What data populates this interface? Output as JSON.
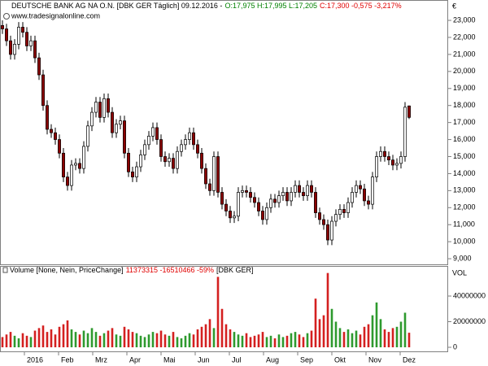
{
  "header": {
    "parts": [
      {
        "text": "DEUTSCHE BANK AG NA O.N. [DBK GER  Täglich] 09.12.2016 -",
        "color": "#000000"
      },
      {
        "text": "O:17,975 H:17,995 L:17,205",
        "color": "#008000"
      },
      {
        "text": "C:17,300 -0,575 -3,217%",
        "color": "#e00000"
      }
    ],
    "watermark": "www.tradesignalonline.com"
  },
  "x_axis_labels": [
    "2016",
    "Feb",
    "Mrz",
    "Apr",
    "Mai",
    "Jun",
    "Jul",
    "Aug",
    "Sep",
    "Okt",
    "Nov",
    "Dez"
  ],
  "chart_data": [
    {
      "type": "candlestick",
      "axis_label": "€",
      "ylim": [
        8.67,
        23.48
      ],
      "yticks": [
        {
          "value": 9,
          "label": "9,000"
        },
        {
          "value": 10,
          "label": "10,000"
        },
        {
          "value": 11,
          "label": "11,000"
        },
        {
          "value": 12,
          "label": "12,000"
        },
        {
          "value": 13,
          "label": "13,000"
        },
        {
          "value": 14,
          "label": "14,000"
        },
        {
          "value": 15,
          "label": "15,000"
        },
        {
          "value": 16,
          "label": "16,000"
        },
        {
          "value": 17,
          "label": "17,000"
        },
        {
          "value": 18,
          "label": "18,000"
        },
        {
          "value": 19,
          "label": "19,000"
        },
        {
          "value": 20,
          "label": "20,000"
        },
        {
          "value": 21,
          "label": "21,000"
        },
        {
          "value": 22,
          "label": "22,000"
        },
        {
          "value": 23,
          "label": "23,000"
        }
      ],
      "colors": {
        "up": "#ffffff",
        "down": "#8b0000",
        "outline": "#000000"
      },
      "open": [
        22.7,
        22.5,
        21.8,
        21.0,
        21.6,
        22.6,
        22.3,
        21.5,
        21.8,
        20.8,
        19.8,
        18.0,
        16.6,
        16.4,
        16.0,
        15.2,
        13.8,
        13.3,
        14.5,
        14.6,
        14.3,
        15.6,
        16.8,
        17.6,
        18.2,
        17.3,
        18.4,
        17.6,
        16.4,
        16.9,
        17.1,
        15.2,
        14.1,
        13.8,
        14.4,
        15.1,
        15.7,
        16.2,
        16.7,
        16.0,
        15.0,
        14.7,
        14.9,
        14.3,
        15.3,
        15.7,
        16.0,
        16.4,
        15.7,
        15.2,
        14.3,
        13.4,
        13.0,
        15.0,
        12.9,
        12.2,
        11.8,
        11.4,
        11.5,
        12.9,
        13.0,
        12.9,
        12.6,
        12.3,
        11.8,
        11.3,
        12.0,
        12.5,
        12.3,
        12.7,
        12.9,
        12.4,
        12.9,
        13.3,
        12.9,
        12.7,
        13.3,
        12.9,
        11.7,
        11.3,
        11.0,
        10.1,
        11.2,
        11.6,
        11.9,
        11.7,
        12.3,
        12.9,
        13.3,
        13.1,
        12.4,
        12.2,
        13.8,
        15.0,
        15.3,
        15.0,
        14.8,
        14.5,
        14.6,
        15.0,
        17.975
      ],
      "high": [
        23.0,
        22.8,
        22.1,
        21.9,
        22.9,
        22.9,
        22.6,
        22.1,
        22.1,
        21.1,
        20.1,
        18.3,
        16.9,
        16.7,
        16.3,
        15.5,
        14.1,
        14.8,
        14.9,
        14.9,
        15.9,
        17.1,
        17.9,
        18.5,
        18.5,
        18.7,
        18.7,
        17.9,
        17.2,
        17.4,
        17.4,
        15.5,
        14.4,
        14.7,
        15.4,
        16.0,
        16.5,
        17.0,
        17.0,
        16.3,
        15.3,
        15.2,
        15.2,
        15.6,
        16.0,
        16.3,
        16.7,
        16.7,
        16.0,
        15.5,
        14.6,
        13.7,
        15.3,
        15.3,
        13.2,
        12.5,
        12.1,
        11.8,
        13.2,
        13.3,
        13.3,
        13.2,
        12.9,
        12.6,
        12.1,
        12.3,
        12.8,
        12.8,
        13.0,
        13.2,
        13.2,
        13.2,
        13.6,
        13.6,
        13.2,
        13.6,
        13.6,
        13.2,
        12.0,
        11.6,
        11.3,
        11.5,
        11.9,
        12.2,
        12.2,
        12.6,
        13.2,
        13.6,
        13.6,
        13.4,
        12.7,
        14.1,
        15.3,
        15.6,
        15.6,
        15.3,
        15.1,
        14.9,
        15.3,
        18.2,
        17.995
      ],
      "low": [
        22.2,
        21.5,
        20.7,
        20.7,
        21.3,
        22.0,
        21.2,
        21.2,
        20.5,
        19.5,
        17.7,
        16.3,
        16.1,
        15.7,
        14.9,
        13.5,
        13.0,
        13.0,
        14.2,
        14.0,
        14.0,
        15.3,
        16.5,
        17.3,
        17.0,
        17.0,
        17.3,
        16.1,
        16.1,
        16.6,
        14.9,
        13.8,
        13.5,
        13.5,
        14.1,
        14.8,
        15.4,
        15.9,
        15.7,
        14.7,
        14.4,
        14.4,
        14.0,
        14.0,
        15.0,
        15.4,
        15.7,
        15.4,
        14.9,
        14.0,
        13.1,
        12.7,
        12.7,
        12.6,
        11.9,
        11.5,
        11.1,
        11.1,
        11.2,
        12.6,
        12.6,
        12.3,
        12.0,
        11.5,
        11.0,
        11.0,
        11.7,
        12.0,
        12.0,
        12.4,
        12.1,
        12.1,
        12.6,
        12.6,
        12.4,
        12.4,
        12.6,
        11.4,
        11.0,
        10.7,
        9.8,
        9.8,
        10.9,
        11.3,
        11.4,
        11.4,
        12.0,
        12.6,
        12.8,
        12.1,
        11.9,
        11.9,
        13.5,
        14.7,
        14.7,
        14.5,
        14.2,
        14.2,
        14.3,
        14.7,
        17.205
      ],
      "close": [
        22.5,
        21.8,
        21.0,
        21.6,
        22.6,
        22.3,
        21.5,
        21.8,
        20.8,
        19.8,
        18.0,
        16.6,
        16.4,
        16.0,
        15.2,
        13.8,
        13.3,
        14.5,
        14.6,
        14.3,
        15.6,
        16.8,
        17.6,
        18.2,
        17.3,
        18.4,
        17.6,
        16.4,
        16.9,
        17.1,
        15.2,
        14.1,
        13.8,
        14.4,
        15.1,
        15.7,
        16.2,
        16.7,
        16.0,
        15.0,
        14.7,
        14.9,
        14.3,
        15.3,
        15.7,
        16.0,
        16.4,
        15.7,
        15.2,
        14.3,
        13.4,
        13.0,
        15.0,
        12.9,
        12.2,
        11.8,
        11.4,
        11.5,
        12.9,
        13.0,
        12.9,
        12.6,
        12.3,
        11.8,
        11.3,
        12.0,
        12.5,
        12.3,
        12.7,
        12.9,
        12.4,
        12.9,
        13.3,
        12.9,
        12.7,
        13.3,
        12.9,
        11.7,
        11.3,
        11.0,
        10.1,
        11.2,
        11.6,
        11.9,
        11.7,
        12.3,
        12.9,
        13.3,
        13.1,
        12.4,
        12.2,
        13.8,
        15.0,
        15.3,
        15.0,
        14.8,
        14.5,
        14.6,
        15.0,
        17.9,
        17.3
      ]
    },
    {
      "type": "bar",
      "title_parts": [
        {
          "text": "Volume [None, Nein, PriceChange]",
          "color": "#000000"
        },
        {
          "text": "11373315 -16510466 -59%",
          "color": "#e00000"
        },
        {
          "text": "[DBK GER]",
          "color": "#000000"
        }
      ],
      "axis_label": "VOL",
      "ylim": [
        0,
        61600000
      ],
      "yticks": [
        0,
        20000000,
        40000000
      ],
      "colors": {
        "up": "#2e9a2e",
        "down": "#d42020"
      },
      "values": [
        8000000,
        10000000,
        12000000,
        9000000,
        7000000,
        11000000,
        9000000,
        8000000,
        13000000,
        15000000,
        17000000,
        12000000,
        14000000,
        10000000,
        16000000,
        18000000,
        21000000,
        14000000,
        12000000,
        10000000,
        13000000,
        11000000,
        15000000,
        12000000,
        9000000,
        11000000,
        13000000,
        15000000,
        10000000,
        9000000,
        16000000,
        14000000,
        12000000,
        11000000,
        9000000,
        8000000,
        10000000,
        12000000,
        11000000,
        13000000,
        10000000,
        9000000,
        12000000,
        8000000,
        7000000,
        9000000,
        11000000,
        10000000,
        14000000,
        16000000,
        18000000,
        22000000,
        15000000,
        55000000,
        30000000,
        18000000,
        14000000,
        12000000,
        10000000,
        9000000,
        11000000,
        8000000,
        9000000,
        10000000,
        12000000,
        8000000,
        9000000,
        7000000,
        10000000,
        8000000,
        9000000,
        11000000,
        12000000,
        10000000,
        8000000,
        11000000,
        13000000,
        38000000,
        22000000,
        25000000,
        58000000,
        30000000,
        20000000,
        15000000,
        12000000,
        14000000,
        11000000,
        13000000,
        10000000,
        16000000,
        18000000,
        25000000,
        35000000,
        22000000,
        14000000,
        12000000,
        15000000,
        16000000,
        20000000,
        27000000,
        11373315
      ]
    }
  ]
}
